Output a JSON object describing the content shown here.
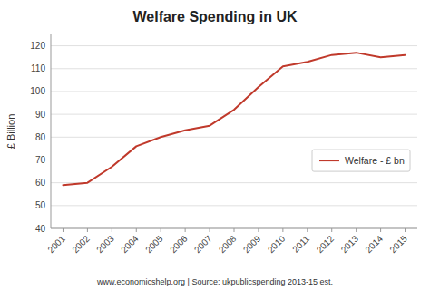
{
  "chart_data": {
    "type": "line",
    "title": "Welfare Spending in UK",
    "y_label": "£ Billion",
    "annotations": [
      "www.economicshelp.org | Source: ukpublicspending 2013-15 est."
    ],
    "x": [
      2001,
      2002,
      2003,
      2004,
      2005,
      2006,
      2007,
      2008,
      2009,
      2010,
      2011,
      2012,
      2013,
      2014,
      2015
    ],
    "series": [
      {
        "name": "Welfare - £ bn",
        "color": "#c0392b",
        "values": [
          59,
          60,
          67,
          76,
          80,
          83,
          85,
          92,
          102,
          111,
          113,
          116,
          117,
          115,
          116
        ]
      }
    ],
    "xlim": [
      2000.5,
      2015.5
    ],
    "xticks": [
      2001,
      2002,
      2003,
      2004,
      2005,
      2006,
      2007,
      2008,
      2009,
      2010,
      2011,
      2012,
      2013,
      2014,
      2015
    ],
    "ylim": [
      40,
      125
    ],
    "yticks": [
      40,
      50,
      60,
      70,
      80,
      90,
      100,
      110,
      120
    ],
    "grid": true,
    "legend": "right"
  }
}
